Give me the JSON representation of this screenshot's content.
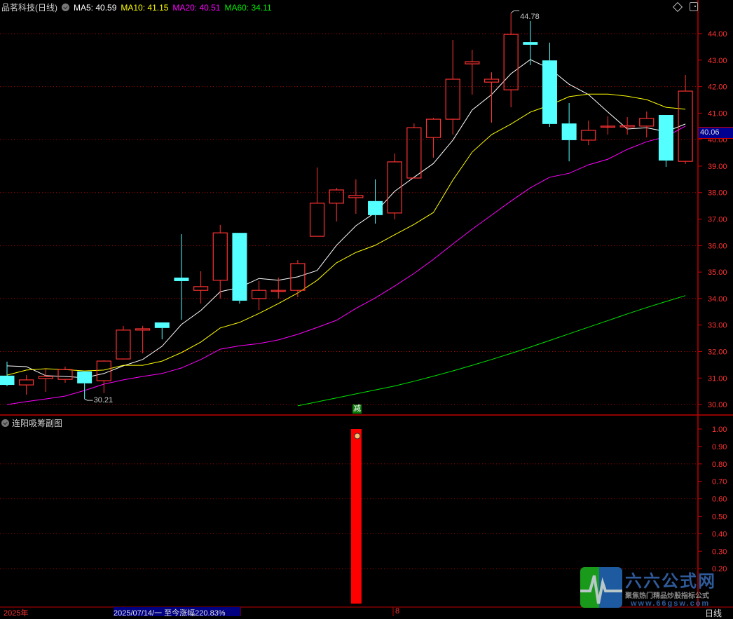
{
  "header": {
    "title": "品茗科技(日线)",
    "ma": [
      {
        "label": "MA5: 40.59",
        "color": "#FFFFFF"
      },
      {
        "label": "MA10: 41.15",
        "color": "#FFFF00"
      },
      {
        "label": "MA20: 40.51",
        "color": "#FF00FF"
      },
      {
        "label": "MA60: 34.11",
        "color": "#00E600"
      }
    ]
  },
  "sub_panel": {
    "title": "连阳吸筹副图"
  },
  "signal_label": "减",
  "cursor_price": "40.06",
  "annotations": {
    "high": "44.78",
    "low": "30.21"
  },
  "bottom_bar": {
    "year": "2025年",
    "info": "2025/07/14/一  至今涨幅220.83%",
    "mark": "8",
    "period": "日线"
  },
  "logo": {
    "name": "六六公式网",
    "slogan": "聚焦热门精品炒股指标公式",
    "site": "www.66gsw.com"
  },
  "colors": {
    "up": "#FF3232",
    "down": "#54FFFF",
    "grid": "#B00000",
    "axis_text": "#FF3232",
    "bar": "#FF0000"
  },
  "chart_data": [
    {
      "type": "candlestick",
      "price_axis": {
        "range": [
          30,
          44
        ],
        "ticks": [
          "30.00",
          "31.00",
          "32.00",
          "33.00",
          "34.00",
          "35.00",
          "36.00",
          "37.00",
          "38.00",
          "39.00",
          "40.00",
          "41.00",
          "42.00",
          "43.00",
          "44.00"
        ]
      },
      "grid": true,
      "ohlc": [
        [
          31.09,
          31.62,
          30.69,
          30.74
        ],
        [
          30.74,
          31.11,
          30.37,
          30.93
        ],
        [
          30.98,
          31.35,
          30.48,
          31.06
        ],
        [
          30.95,
          31.43,
          30.82,
          31.32
        ],
        [
          31.25,
          31.25,
          30.21,
          30.8
        ],
        [
          30.9,
          31.67,
          30.43,
          31.64
        ],
        [
          31.72,
          32.97,
          31.7,
          32.81
        ],
        [
          32.81,
          32.97,
          31.93,
          32.86
        ],
        [
          33.1,
          33.1,
          32.46,
          32.89
        ],
        [
          34.79,
          36.43,
          33.2,
          34.66
        ],
        [
          34.31,
          35.03,
          33.81,
          34.45
        ],
        [
          34.69,
          36.78,
          34.0,
          36.48
        ],
        [
          36.48,
          36.48,
          33.81,
          33.92
        ],
        [
          34.0,
          34.66,
          33.57,
          34.31
        ],
        [
          34.31,
          34.79,
          34.0,
          34.31
        ],
        [
          34.31,
          35.45,
          34.05,
          35.32
        ],
        [
          36.35,
          38.95,
          36.35,
          37.6
        ],
        [
          37.6,
          38.18,
          36.91,
          38.1
        ],
        [
          37.81,
          38.5,
          37.2,
          37.89
        ],
        [
          37.68,
          38.5,
          36.83,
          37.15
        ],
        [
          37.23,
          39.48,
          36.99,
          39.16
        ],
        [
          38.55,
          40.61,
          38.55,
          40.45
        ],
        [
          40.08,
          40.82,
          39.32,
          40.77
        ],
        [
          40.77,
          43.76,
          40.19,
          42.28
        ],
        [
          42.86,
          43.39,
          41.7,
          42.94
        ],
        [
          42.17,
          42.54,
          40.64,
          42.28
        ],
        [
          41.88,
          44.78,
          41.22,
          43.97
        ],
        [
          43.68,
          44.48,
          42.81,
          43.58
        ],
        [
          42.99,
          43.66,
          40.48,
          40.59
        ],
        [
          40.61,
          41.38,
          39.18,
          39.98
        ],
        [
          39.98,
          40.72,
          39.79,
          40.35
        ],
        [
          40.51,
          40.88,
          40.19,
          40.51
        ],
        [
          40.48,
          40.85,
          40.19,
          40.53
        ],
        [
          40.51,
          41.06,
          40.08,
          40.8
        ],
        [
          40.93,
          40.93,
          38.97,
          39.21
        ],
        [
          39.18,
          42.44,
          39.08,
          41.83
        ]
      ],
      "series": [
        {
          "name": "MA5",
          "color": "#FFFFFF",
          "values": [
            31.46,
            31.43,
            31.09,
            31.06,
            31.01,
            31.17,
            31.46,
            31.7,
            32.2,
            33.02,
            33.55,
            34.26,
            34.42,
            34.76,
            34.69,
            34.82,
            35.06,
            36.01,
            36.75,
            37.25,
            38.05,
            38.58,
            39.1,
            39.98,
            41.12,
            41.7,
            42.49,
            43.02,
            42.68,
            42.09,
            41.7,
            41.04,
            40.4,
            40.45,
            40.3,
            40.59
          ]
        },
        {
          "name": "MA10",
          "color": "#FFFF00",
          "values": [
            31.11,
            31.3,
            31.35,
            31.32,
            31.27,
            31.3,
            31.48,
            31.48,
            31.64,
            31.96,
            32.36,
            32.89,
            33.1,
            33.44,
            33.81,
            34.21,
            34.69,
            35.35,
            35.74,
            36.01,
            36.41,
            36.8,
            37.25,
            38.47,
            39.53,
            40.19,
            40.59,
            41.04,
            41.3,
            41.62,
            41.72,
            41.72,
            41.64,
            41.51,
            41.22,
            41.15
          ]
        },
        {
          "name": "MA20",
          "color": "#FF00FF",
          "values": [
            30.0,
            30.11,
            30.21,
            30.32,
            30.53,
            30.77,
            30.93,
            31.06,
            31.17,
            31.38,
            31.7,
            32.09,
            32.22,
            32.3,
            32.44,
            32.65,
            32.91,
            33.18,
            33.63,
            34.02,
            34.47,
            34.95,
            35.48,
            36.06,
            36.62,
            37.15,
            37.68,
            38.18,
            38.58,
            38.73,
            39.05,
            39.26,
            39.63,
            39.92,
            40.11,
            40.51
          ]
        },
        {
          "name": "MA60",
          "color": "#00E600",
          "values": [
            null,
            null,
            null,
            null,
            null,
            null,
            null,
            null,
            null,
            null,
            null,
            null,
            null,
            null,
            null,
            29.95,
            30.1,
            30.25,
            30.4,
            30.55,
            30.7,
            30.88,
            31.07,
            31.27,
            31.48,
            31.7,
            31.93,
            32.17,
            32.42,
            32.67,
            32.92,
            33.17,
            33.42,
            33.66,
            33.89,
            34.11
          ]
        }
      ],
      "signal_index": 18
    },
    {
      "type": "bar",
      "title": "连阳吸筹副图",
      "y_axis": {
        "range": [
          0,
          1
        ],
        "ticks": [
          "0.20",
          "0.30",
          "0.40",
          "0.50",
          "0.60",
          "0.70",
          "0.80",
          "0.90",
          "1.00"
        ]
      },
      "values": [
        0,
        0,
        0,
        0,
        0,
        0,
        0,
        0,
        0,
        0,
        0,
        0,
        0,
        0,
        0,
        0,
        0,
        0,
        1,
        0,
        0,
        0,
        0,
        0,
        0,
        0,
        0,
        0,
        0,
        0,
        0,
        0,
        0,
        0,
        0,
        0
      ]
    }
  ]
}
